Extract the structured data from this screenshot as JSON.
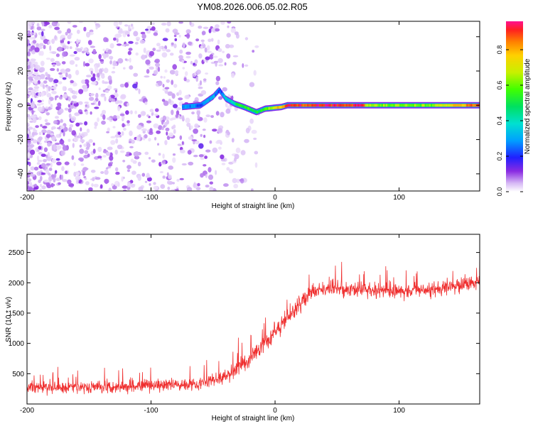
{
  "title": "YM08.2026.006.05.02.R05",
  "chart_data": [
    {
      "type": "heatmap",
      "title": "YM08.2026.006.05.02.R05",
      "xlabel": "Height of straight line (km)",
      "ylabel": "Frequency (Hz)",
      "xlim": [
        -200,
        165
      ],
      "ylim": [
        -50,
        49
      ],
      "xticks": [
        -200,
        -100,
        0,
        100
      ],
      "yticks": [
        -40,
        -20,
        0,
        20,
        40
      ],
      "colorbar": {
        "label": "Normalized spectral amplitude",
        "range": [
          0,
          0.96
        ],
        "ticks": [
          0,
          0.2,
          0.4,
          0.6,
          0.8
        ],
        "tick_labels": [
          "0.0",
          "0.2",
          "0.4",
          "0.6",
          "0.8"
        ]
      },
      "ridge": {
        "description": "strong spectral line near 0 Hz",
        "points": [
          {
            "x": -75,
            "y": -1,
            "amp": 0.25
          },
          {
            "x": -60,
            "y": 0,
            "amp": 0.25
          },
          {
            "x": -50,
            "y": 5,
            "amp": 0.3
          },
          {
            "x": -45,
            "y": 9,
            "amp": 0.2
          },
          {
            "x": -40,
            "y": 4,
            "amp": 0.35
          },
          {
            "x": -33,
            "y": 1,
            "amp": 0.45
          },
          {
            "x": -25,
            "y": -1,
            "amp": 0.55
          },
          {
            "x": -15,
            "y": -4,
            "amp": 0.5
          },
          {
            "x": -8,
            "y": -2,
            "amp": 0.6
          },
          {
            "x": 5,
            "y": -1,
            "amp": 0.8
          },
          {
            "x": 10,
            "y": 0,
            "amp": 0.9
          },
          {
            "x": 70,
            "y": 0,
            "amp": 0.92
          },
          {
            "x": 80,
            "y": 0,
            "amp": 0.55
          },
          {
            "x": 130,
            "y": 0,
            "amp": 0.65
          },
          {
            "x": 165,
            "y": 0,
            "amp": 0.9
          }
        ]
      },
      "noise_region": {
        "x_start": -200,
        "x_fade": -55,
        "x_end": -5,
        "typical_amp": [
          0.02,
          0.15
        ]
      }
    },
    {
      "type": "line",
      "xlabel": "Height of straight line (km)",
      "ylabel": "SNR (10 * v/v)",
      "xlim": [
        -200,
        165
      ],
      "ylim": [
        0,
        2800
      ],
      "xticks": [
        -200,
        -100,
        0,
        100
      ],
      "yticks": [
        500,
        1000,
        1500,
        2000,
        2500
      ],
      "series": [
        {
          "name": "SNR",
          "color": "#ef2e2e",
          "trend_x": [
            -200,
            -150,
            -100,
            -60,
            -40,
            -20,
            0,
            20,
            30,
            50,
            100,
            150,
            165
          ],
          "trend_y": [
            270,
            280,
            300,
            340,
            450,
            750,
            1200,
            1650,
            1850,
            1900,
            1850,
            1950,
            2050
          ],
          "spread": [
            180,
            180,
            180,
            180,
            200,
            250,
            300,
            250,
            230,
            220,
            220,
            230,
            230
          ]
        }
      ]
    }
  ]
}
